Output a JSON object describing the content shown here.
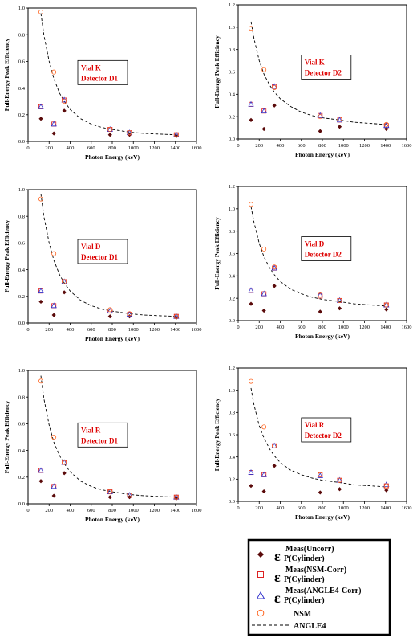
{
  "chart_data": [
    {
      "type": "scatter",
      "xlabel": "Photon Energy (keV)",
      "ylabel": "Full-Energy Peak Efficiency",
      "annotation": [
        "Vial K",
        "Detector D1"
      ],
      "xlim": [
        0,
        1600
      ],
      "ylim": [
        0,
        1.0
      ],
      "xticks": [
        0,
        200,
        400,
        600,
        800,
        1000,
        1200,
        1400,
        1600
      ],
      "yticks": [
        0.0,
        0.2,
        0.4,
        0.6,
        0.8,
        1.0
      ],
      "x": [
        122,
        245,
        344,
        779,
        964,
        1408
      ],
      "series": [
        {
          "key": "meas",
          "values": [
            0.17,
            0.06,
            0.23,
            0.05,
            0.05,
            0.04
          ]
        },
        {
          "key": "nsm_corr",
          "values": [
            0.26,
            0.13,
            0.31,
            0.09,
            0.065,
            0.05
          ]
        },
        {
          "key": "angle_corr",
          "values": [
            0.26,
            0.13,
            0.31,
            0.09,
            0.065,
            0.05
          ]
        },
        {
          "key": "nsm",
          "values": [
            0.97,
            0.52,
            0.3,
            0.09,
            0.065,
            0.05
          ]
        }
      ],
      "angle4_curve": {
        "x": [
          122,
          150,
          200,
          245,
          300,
          344,
          400,
          500,
          600,
          700,
          800,
          964,
          1100,
          1250,
          1408
        ],
        "y": [
          0.96,
          0.8,
          0.6,
          0.47,
          0.36,
          0.3,
          0.24,
          0.17,
          0.13,
          0.105,
          0.09,
          0.07,
          0.06,
          0.055,
          0.05
        ]
      }
    },
    {
      "type": "scatter",
      "xlabel": "Photon Energy (keV)",
      "ylabel": "Full-Energy Peak Efficiency",
      "annotation": [
        "Vial K",
        "Detector D2"
      ],
      "xlim": [
        0,
        1600
      ],
      "ylim": [
        0,
        1.2
      ],
      "xticks": [
        0,
        200,
        400,
        600,
        800,
        1000,
        1200,
        1400,
        1600
      ],
      "yticks": [
        0.0,
        0.2,
        0.4,
        0.6,
        0.8,
        1.0,
        1.2
      ],
      "x": [
        122,
        245,
        344,
        779,
        964,
        1408
      ],
      "series": [
        {
          "key": "meas",
          "values": [
            0.17,
            0.09,
            0.3,
            0.07,
            0.11,
            0.09
          ]
        },
        {
          "key": "nsm_corr",
          "values": [
            0.31,
            0.25,
            0.47,
            0.21,
            0.17,
            0.12
          ]
        },
        {
          "key": "angle_corr",
          "values": [
            0.31,
            0.25,
            0.47,
            0.21,
            0.17,
            0.12
          ]
        },
        {
          "key": "nsm",
          "values": [
            0.99,
            0.62,
            0.46,
            0.2,
            0.18,
            0.13
          ]
        }
      ],
      "angle4_curve": {
        "x": [
          122,
          150,
          200,
          245,
          300,
          344,
          400,
          500,
          600,
          700,
          800,
          964,
          1100,
          1250,
          1408
        ],
        "y": [
          1.05,
          0.9,
          0.7,
          0.58,
          0.48,
          0.42,
          0.36,
          0.29,
          0.24,
          0.21,
          0.19,
          0.17,
          0.15,
          0.14,
          0.13
        ]
      }
    },
    {
      "type": "scatter",
      "xlabel": "Photon Energy (keV)",
      "ylabel": "Full-Energy Peak Efficiency",
      "annotation": [
        "Vial D",
        "Detector D1"
      ],
      "xlim": [
        0,
        1600
      ],
      "ylim": [
        0,
        1.0
      ],
      "xticks": [
        0,
        200,
        400,
        600,
        800,
        1000,
        1200,
        1400,
        1600
      ],
      "yticks": [
        0.0,
        0.2,
        0.4,
        0.6,
        0.8,
        1.0
      ],
      "x": [
        122,
        245,
        344,
        779,
        964,
        1408
      ],
      "series": [
        {
          "key": "meas",
          "values": [
            0.16,
            0.06,
            0.23,
            0.05,
            0.05,
            0.04
          ]
        },
        {
          "key": "nsm_corr",
          "values": [
            0.24,
            0.13,
            0.31,
            0.09,
            0.065,
            0.05
          ]
        },
        {
          "key": "angle_corr",
          "values": [
            0.24,
            0.13,
            0.31,
            0.09,
            0.065,
            0.05
          ]
        },
        {
          "key": "nsm",
          "values": [
            0.93,
            0.52,
            0.31,
            0.1,
            0.07,
            0.05
          ]
        }
      ],
      "angle4_curve": {
        "x": [
          122,
          150,
          200,
          245,
          300,
          344,
          400,
          500,
          600,
          700,
          800,
          964,
          1100,
          1250,
          1408
        ],
        "y": [
          0.97,
          0.8,
          0.6,
          0.47,
          0.36,
          0.3,
          0.24,
          0.17,
          0.13,
          0.105,
          0.09,
          0.07,
          0.06,
          0.055,
          0.05
        ]
      }
    },
    {
      "type": "scatter",
      "xlabel": "Photon Energy (keV)",
      "ylabel": "Full-Energy Peak Efficiency",
      "annotation": [
        "Vial D",
        "Detector D2"
      ],
      "xlim": [
        0,
        1600
      ],
      "ylim": [
        0,
        1.2
      ],
      "xticks": [
        0,
        200,
        400,
        600,
        800,
        1000,
        1200,
        1400,
        1600
      ],
      "yticks": [
        0.0,
        0.2,
        0.4,
        0.6,
        0.8,
        1.0,
        1.2
      ],
      "x": [
        122,
        245,
        344,
        779,
        964,
        1408
      ],
      "series": [
        {
          "key": "meas",
          "values": [
            0.15,
            0.09,
            0.31,
            0.08,
            0.11,
            0.1
          ]
        },
        {
          "key": "nsm_corr",
          "values": [
            0.27,
            0.24,
            0.47,
            0.22,
            0.18,
            0.14
          ]
        },
        {
          "key": "angle_corr",
          "values": [
            0.27,
            0.24,
            0.47,
            0.23,
            0.18,
            0.14
          ]
        },
        {
          "key": "nsm",
          "values": [
            1.04,
            0.64,
            0.48,
            0.23,
            0.18,
            0.14
          ]
        }
      ],
      "angle4_curve": {
        "x": [
          122,
          150,
          200,
          245,
          300,
          344,
          400,
          500,
          600,
          700,
          800,
          964,
          1100,
          1250,
          1408
        ],
        "y": [
          1.02,
          0.88,
          0.69,
          0.57,
          0.47,
          0.41,
          0.35,
          0.28,
          0.24,
          0.21,
          0.19,
          0.17,
          0.15,
          0.14,
          0.13
        ]
      }
    },
    {
      "type": "scatter",
      "xlabel": "Photon Energy (keV)",
      "ylabel": "Full-Energy Peak Efficiency",
      "annotation": [
        "Vial R",
        "Detector D1"
      ],
      "xlim": [
        0,
        1600
      ],
      "ylim": [
        0,
        1.0
      ],
      "xticks": [
        0,
        200,
        400,
        600,
        800,
        1000,
        1200,
        1400,
        1600
      ],
      "yticks": [
        0.0,
        0.2,
        0.4,
        0.6,
        0.8,
        1.0
      ],
      "x": [
        122,
        245,
        344,
        779,
        964,
        1408
      ],
      "series": [
        {
          "key": "meas",
          "values": [
            0.17,
            0.06,
            0.23,
            0.05,
            0.05,
            0.04
          ]
        },
        {
          "key": "nsm_corr",
          "values": [
            0.25,
            0.13,
            0.31,
            0.09,
            0.065,
            0.05
          ]
        },
        {
          "key": "angle_corr",
          "values": [
            0.25,
            0.13,
            0.31,
            0.09,
            0.065,
            0.05
          ]
        },
        {
          "key": "nsm",
          "values": [
            0.92,
            0.5,
            0.31,
            0.09,
            0.065,
            0.05
          ]
        }
      ],
      "angle4_curve": {
        "x": [
          122,
          150,
          200,
          245,
          300,
          344,
          400,
          500,
          600,
          700,
          800,
          964,
          1100,
          1250,
          1408
        ],
        "y": [
          0.96,
          0.79,
          0.59,
          0.46,
          0.36,
          0.3,
          0.24,
          0.17,
          0.13,
          0.105,
          0.09,
          0.07,
          0.06,
          0.055,
          0.05
        ]
      }
    },
    {
      "type": "scatter",
      "xlabel": "Photon Energy (keV)",
      "ylabel": "Full-Energy Peak Efficiency",
      "annotation": [
        "Vial R",
        "Detector D2"
      ],
      "xlim": [
        0,
        1600
      ],
      "ylim": [
        0,
        1.2
      ],
      "xticks": [
        0,
        200,
        400,
        600,
        800,
        1000,
        1200,
        1400,
        1600
      ],
      "yticks": [
        0.0,
        0.2,
        0.4,
        0.6,
        0.8,
        1.0,
        1.2
      ],
      "x": [
        122,
        245,
        344,
        779,
        964,
        1408
      ],
      "series": [
        {
          "key": "meas",
          "values": [
            0.14,
            0.09,
            0.32,
            0.08,
            0.11,
            0.1
          ]
        },
        {
          "key": "nsm_corr",
          "values": [
            0.26,
            0.24,
            0.5,
            0.24,
            0.19,
            0.14
          ]
        },
        {
          "key": "angle_corr",
          "values": [
            0.26,
            0.24,
            0.5,
            0.23,
            0.19,
            0.15
          ]
        },
        {
          "key": "nsm",
          "values": [
            1.08,
            0.67,
            0.5,
            0.24,
            0.19,
            0.14
          ]
        }
      ],
      "angle4_curve": {
        "x": [
          122,
          150,
          200,
          245,
          300,
          344,
          400,
          500,
          600,
          700,
          800,
          964,
          1100,
          1250,
          1408
        ],
        "y": [
          1.02,
          0.87,
          0.68,
          0.57,
          0.47,
          0.41,
          0.35,
          0.28,
          0.24,
          0.21,
          0.19,
          0.17,
          0.15,
          0.14,
          0.13
        ]
      }
    }
  ],
  "legend": {
    "items": [
      {
        "key": "meas",
        "main": "ε",
        "sup": "Meas(Uncorr)",
        "sub": "P(Cylinder)",
        "marker": "diamond",
        "color": "#5a0a0a"
      },
      {
        "key": "nsm_corr",
        "main": "ε",
        "sup": "Meas(NSM-Corr)",
        "sub": "P(Cylinder)",
        "marker": "square",
        "color": "#dd2222"
      },
      {
        "key": "angle_corr",
        "main": "ε",
        "sup": "Meas(ANGLE4-Corr)",
        "sub": "P(Cylinder)",
        "marker": "triangle",
        "color": "#3333cc"
      },
      {
        "key": "nsm",
        "label": "NSM",
        "marker": "circle",
        "color": "#ff6622"
      },
      {
        "key": "angle4",
        "label": "ANGLE4",
        "marker": "dash",
        "color": "#000000"
      }
    ]
  }
}
